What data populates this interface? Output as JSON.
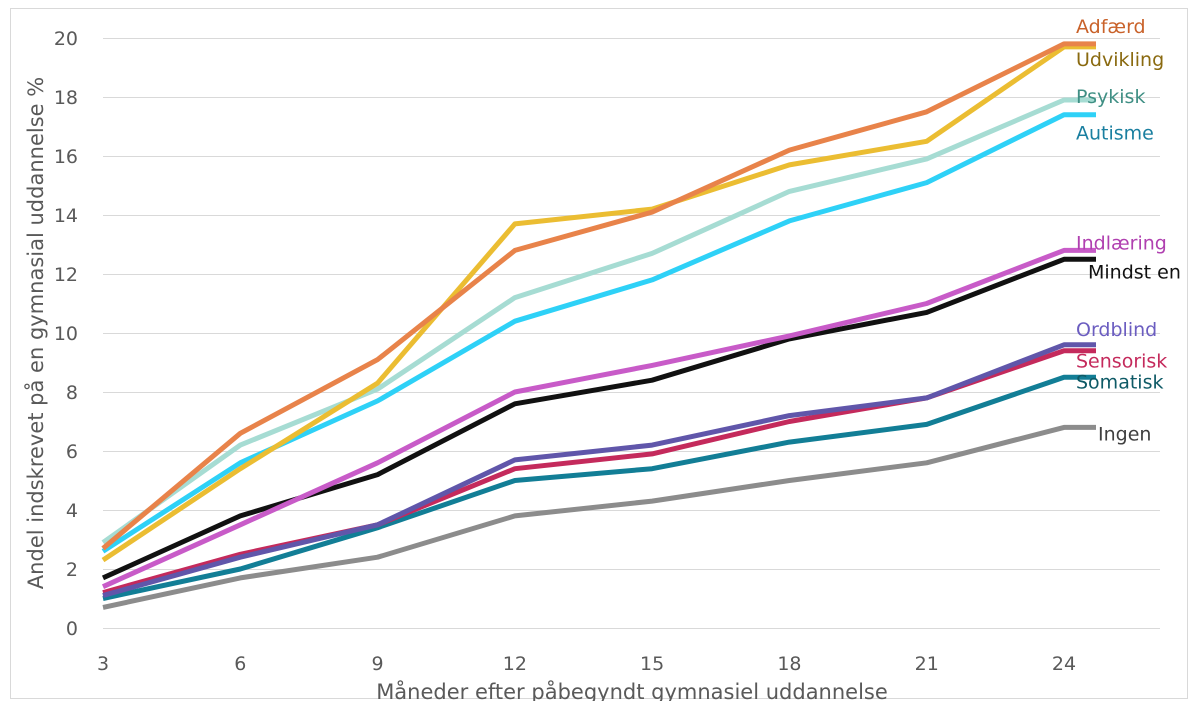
{
  "chart_data": {
    "type": "line",
    "title": "",
    "xlabel": "Måneder efter påbegyndt gymnasiel uddannelse",
    "ylabel": "Andel indskrevet på en gymnasial uddannelse %",
    "x": [
      3,
      6,
      9,
      12,
      15,
      18,
      21,
      24
    ],
    "xticks": [
      "3",
      "6",
      "9",
      "12",
      "15",
      "18",
      "21",
      "24"
    ],
    "yticks": [
      "0",
      "2",
      "4",
      "6",
      "8",
      "10",
      "12",
      "14",
      "16",
      "18",
      "20"
    ],
    "ylim": [
      0,
      20
    ],
    "grid": true,
    "legend": "direct labels at line ends (right)",
    "series": [
      {
        "name": "Adfærd",
        "color": "#E8834A",
        "label_color": "#C9622A",
        "values": [
          2.7,
          6.6,
          9.1,
          12.8,
          14.1,
          16.2,
          17.5,
          19.8
        ]
      },
      {
        "name": "Udvikling",
        "color": "#EBBD32",
        "label_color": "#8A6A10",
        "values": [
          2.3,
          5.4,
          8.3,
          13.7,
          14.2,
          15.7,
          16.5,
          19.7
        ]
      },
      {
        "name": "Psykisk",
        "color": "#A6DCD3",
        "label_color": "#3F8F84",
        "values": [
          2.9,
          6.2,
          8.1,
          11.2,
          12.7,
          14.8,
          15.9,
          17.9
        ]
      },
      {
        "name": "Autisme",
        "color": "#2ED1F7",
        "label_color": "#1A7FA0",
        "values": [
          2.6,
          5.6,
          7.7,
          10.4,
          11.8,
          13.8,
          15.1,
          17.4
        ]
      },
      {
        "name": "Indlæring",
        "color": "#C85BC8",
        "label_color": "#B040B0",
        "values": [
          1.4,
          3.5,
          5.6,
          8.0,
          8.9,
          9.9,
          11.0,
          12.8
        ]
      },
      {
        "name": "Mindst en",
        "color": "#111111",
        "label_color": "#111111",
        "values": [
          1.7,
          3.8,
          5.2,
          7.6,
          8.4,
          9.8,
          10.7,
          12.5
        ]
      },
      {
        "name": "Ordblind",
        "color": "#6056AA",
        "label_color": "#6B5DC0",
        "values": [
          1.1,
          2.4,
          3.5,
          5.7,
          6.2,
          7.2,
          7.8,
          9.6
        ]
      },
      {
        "name": "Sensorisk",
        "color": "#C42A5C",
        "label_color": "#C42A5C",
        "values": [
          1.2,
          2.5,
          3.5,
          5.4,
          5.9,
          7.0,
          7.8,
          9.4
        ]
      },
      {
        "name": "Somatisk",
        "color": "#127E96",
        "label_color": "#0E5A66",
        "values": [
          1.0,
          2.0,
          3.4,
          5.0,
          5.4,
          6.3,
          6.9,
          8.5
        ]
      },
      {
        "name": "Ingen",
        "color": "#8C8C8C",
        "label_color": "#404040",
        "values": [
          0.7,
          1.7,
          2.4,
          3.8,
          4.3,
          5.0,
          5.6,
          6.8
        ]
      }
    ]
  }
}
